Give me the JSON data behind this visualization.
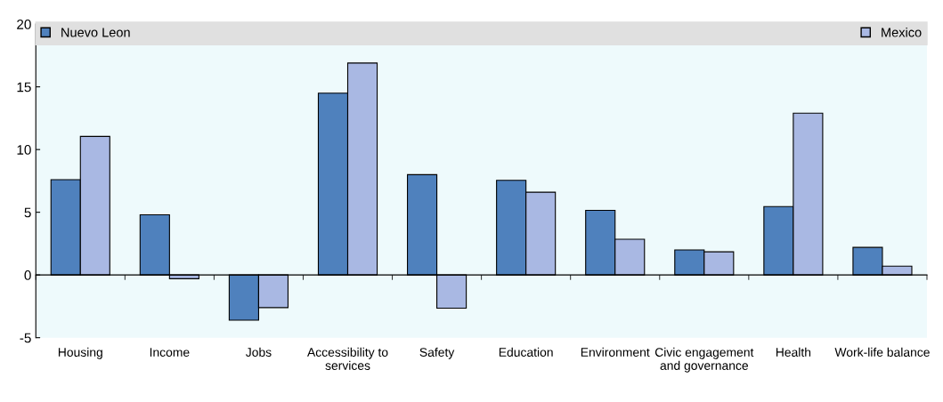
{
  "chart_data": {
    "type": "bar",
    "categories": [
      "Housing",
      "Income",
      "Jobs",
      "Accessibility to\nservices",
      "Safety",
      "Education",
      "Environment",
      "Civic engagement\nand governance",
      "Health",
      "Work-life balance"
    ],
    "series": [
      {
        "name": "Nuevo Leon",
        "color": "#4f81bd",
        "values": [
          7.6,
          4.8,
          -3.6,
          14.5,
          8.0,
          7.55,
          5.15,
          2.0,
          5.45,
          2.2
        ]
      },
      {
        "name": "Mexico",
        "color": "#a9b8e3",
        "values": [
          11.05,
          -0.3,
          -2.6,
          16.9,
          -2.65,
          6.6,
          2.85,
          1.85,
          12.9,
          0.7
        ]
      }
    ],
    "ylim": [
      -5,
      20
    ],
    "yticks": [
      -5,
      0,
      5,
      10,
      15,
      20
    ],
    "legend": "top"
  }
}
